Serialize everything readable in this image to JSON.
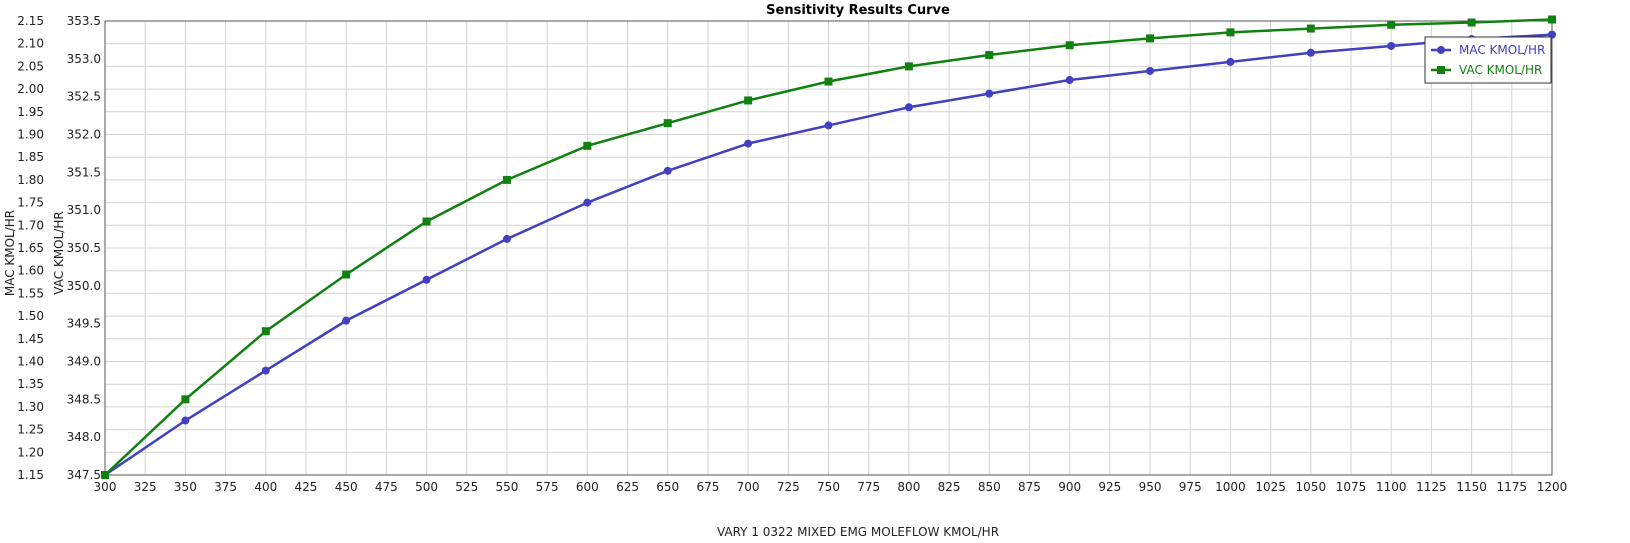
{
  "chart_data": {
    "type": "line",
    "title": "Sensitivity Results Curve",
    "xlabel": "VARY   1 0322 MIXED EMG MOLEFLOW KMOL/HR",
    "ylabel_left": "MAC KMOL/HR",
    "ylabel_right": "VAC KMOL/HR",
    "grid": true,
    "legend_position": "top-right",
    "xlim": [
      300,
      1200
    ],
    "x_ticks": [
      300,
      325,
      350,
      375,
      400,
      425,
      450,
      475,
      500,
      525,
      550,
      575,
      600,
      625,
      650,
      675,
      700,
      725,
      750,
      775,
      800,
      825,
      850,
      875,
      900,
      925,
      950,
      975,
      1000,
      1025,
      1050,
      1075,
      1100,
      1125,
      1150,
      1175,
      1200
    ],
    "axis1": {
      "ylim": [
        1.15,
        2.15
      ],
      "ticks": [
        "1.15",
        "1.20",
        "1.25",
        "1.30",
        "1.35",
        "1.40",
        "1.45",
        "1.50",
        "1.55",
        "1.60",
        "1.65",
        "1.70",
        "1.75",
        "1.80",
        "1.85",
        "1.90",
        "1.95",
        "2.00",
        "2.05",
        "2.10",
        "2.15"
      ]
    },
    "axis2": {
      "ylim": [
        347.5,
        353.5
      ],
      "ticks": [
        "347.5",
        "348.0",
        "348.5",
        "349.0",
        "349.5",
        "350.0",
        "350.5",
        "351.0",
        "351.5",
        "352.0",
        "352.5",
        "353.0",
        "353.5"
      ]
    },
    "x": [
      300,
      350,
      400,
      450,
      500,
      550,
      600,
      650,
      700,
      750,
      800,
      850,
      900,
      950,
      1000,
      1050,
      1100,
      1150,
      1200
    ],
    "series": [
      {
        "name": "MAC KMOL/HR",
        "axis": "axis1",
        "color": "#4040c0",
        "marker": "circle",
        "values": [
          1.15,
          1.27,
          1.38,
          1.49,
          1.58,
          1.67,
          1.75,
          1.82,
          1.88,
          1.92,
          1.96,
          1.99,
          2.02,
          2.04,
          2.06,
          2.08,
          2.095,
          2.11,
          2.12
        ]
      },
      {
        "name": "VAC KMOL/HR",
        "axis": "axis2",
        "color": "#108010",
        "marker": "square",
        "values": [
          347.5,
          348.5,
          349.4,
          350.15,
          350.85,
          351.4,
          351.85,
          352.15,
          352.45,
          352.7,
          352.9,
          353.05,
          353.18,
          353.27,
          353.35,
          353.4,
          353.45,
          353.48,
          353.52
        ]
      }
    ]
  }
}
